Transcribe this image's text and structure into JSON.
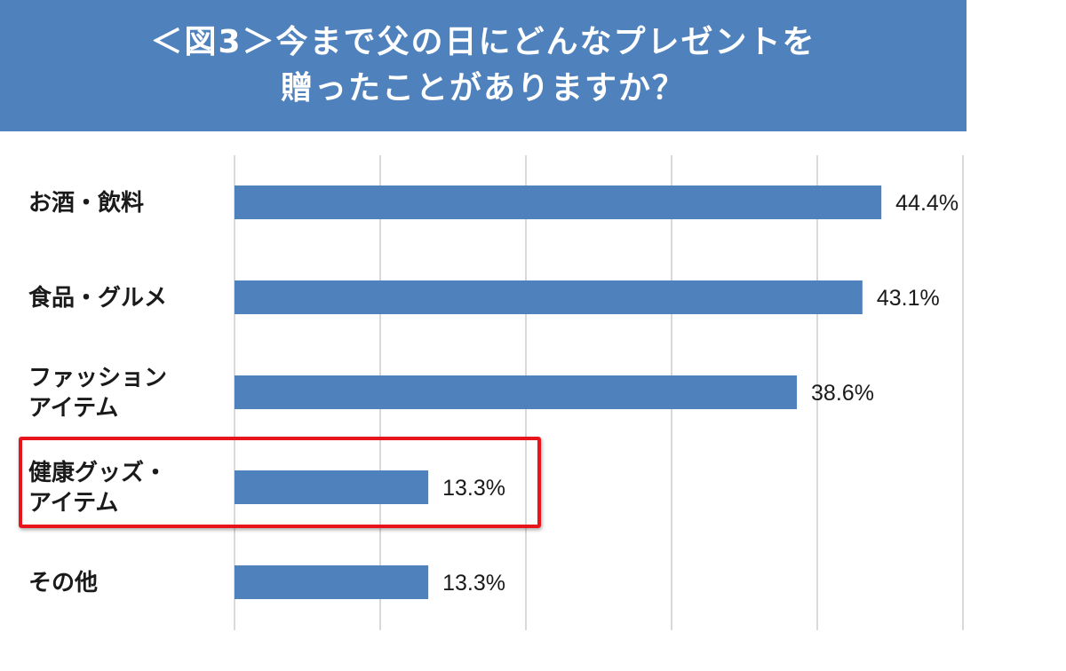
{
  "header": {
    "title_line1": "＜図3＞今まで父の日にどんなプレゼントを",
    "title_line2": "贈ったことがありますか？"
  },
  "chart_data": {
    "type": "bar",
    "orientation": "horizontal",
    "categories": [
      [
        "お酒・飲料"
      ],
      [
        "食品・グルメ"
      ],
      [
        "ファッション",
        "アイテム"
      ],
      [
        "健康グッズ・",
        "アイテム"
      ],
      [
        "その他"
      ]
    ],
    "values": [
      44.4,
      43.1,
      38.6,
      13.3,
      13.3
    ],
    "value_labels": [
      "44.4%",
      "43.1%",
      "38.6%",
      "13.3%",
      "13.3%"
    ],
    "xlim": [
      0,
      50
    ],
    "grid_step": 10,
    "grid": true,
    "highlighted_category_index": 3,
    "colors": {
      "bar": "#4f81bd",
      "grid": "#d9d9d9",
      "highlight": "#e8141b",
      "header": "#4f81bd"
    }
  }
}
